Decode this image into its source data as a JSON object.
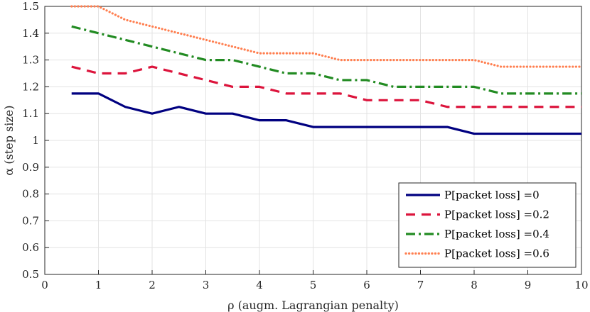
{
  "chart_data": {
    "type": "line",
    "title": "",
    "xlabel": "ρ (augm. Lagrangian penalty)",
    "ylabel": "α (step size)",
    "xlim": [
      0,
      10
    ],
    "ylim": [
      0.5,
      1.5
    ],
    "xticks": [
      0,
      1,
      2,
      3,
      4,
      5,
      6,
      7,
      8,
      9,
      10
    ],
    "yticks": [
      0.5,
      0.6,
      0.7,
      0.8,
      0.9,
      1,
      1.1,
      1.2,
      1.3,
      1.4,
      1.5
    ],
    "xtick_labels": [
      "0",
      "1",
      "2",
      "3",
      "4",
      "5",
      "6",
      "7",
      "8",
      "9",
      "10"
    ],
    "ytick_labels": [
      "0.5",
      "0.6",
      "0.7",
      "0.8",
      "0.9",
      "1",
      "1.1",
      "1.2",
      "1.3",
      "1.4",
      "1.5"
    ],
    "grid": true,
    "legend_position": "bottom-right",
    "x": [
      0.5,
      1,
      1.5,
      2,
      2.5,
      3,
      3.5,
      4,
      4.5,
      5,
      5.5,
      6,
      6.5,
      7,
      7.5,
      8,
      8.5,
      9,
      9.5,
      10
    ],
    "series": [
      {
        "name": "P[packet loss] =0",
        "color": "#000080",
        "style": "solid",
        "values": [
          1.175,
          1.175,
          1.125,
          1.1,
          1.125,
          1.1,
          1.1,
          1.075,
          1.075,
          1.05,
          1.05,
          1.05,
          1.05,
          1.05,
          1.05,
          1.025,
          1.025,
          1.025,
          1.025,
          1.025
        ]
      },
      {
        "name": "P[packet loss] =0.2",
        "color": "#DC143C",
        "style": "dashed",
        "values": [
          1.275,
          1.25,
          1.25,
          1.275,
          1.25,
          1.225,
          1.2,
          1.2,
          1.175,
          1.175,
          1.175,
          1.15,
          1.15,
          1.15,
          1.125,
          1.125,
          1.125,
          1.125,
          1.125,
          1.125
        ]
      },
      {
        "name": "P[packet loss] =0.4",
        "color": "#228B22",
        "style": "dashdot",
        "values": [
          1.425,
          1.4,
          1.375,
          1.35,
          1.325,
          1.3,
          1.3,
          1.275,
          1.25,
          1.25,
          1.225,
          1.225,
          1.2,
          1.2,
          1.2,
          1.2,
          1.175,
          1.175,
          1.175,
          1.175
        ]
      },
      {
        "name": "P[packet loss] =0.6",
        "color": "#FF7F50",
        "style": "dotted",
        "values": [
          1.5,
          1.5,
          1.45,
          1.425,
          1.4,
          1.375,
          1.35,
          1.325,
          1.325,
          1.325,
          1.3,
          1.3,
          1.3,
          1.3,
          1.3,
          1.3,
          1.275,
          1.275,
          1.275,
          1.275
        ]
      }
    ]
  }
}
